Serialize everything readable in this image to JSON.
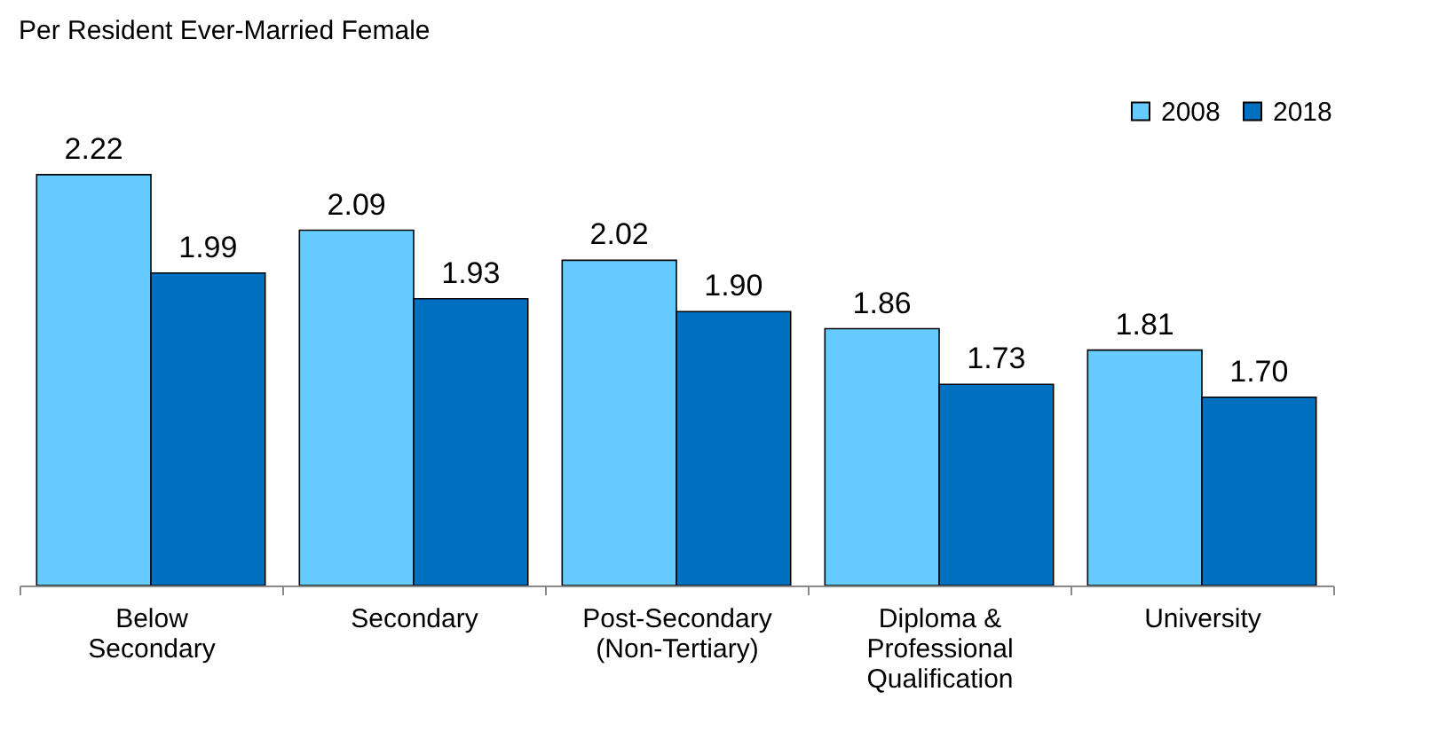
{
  "chart_data": {
    "type": "bar",
    "title": "Per Resident Ever-Married Female",
    "categories": [
      "Below\nSecondary",
      "Secondary",
      "Post-Secondary\n(Non-Tertiary)",
      "Diploma &\nProfessional\nQualification",
      "University"
    ],
    "series": [
      {
        "name": "2008",
        "color": "#66ccff",
        "values": [
          2.22,
          2.09,
          2.02,
          1.86,
          1.81
        ],
        "value_labels": [
          "2.22",
          "2.09",
          "2.02",
          "1.86",
          "1.81"
        ]
      },
      {
        "name": "2018",
        "color": "#0070c0",
        "values": [
          1.99,
          1.93,
          1.9,
          1.73,
          1.7
        ],
        "value_labels": [
          "1.99",
          "1.93",
          "1.90",
          "1.73",
          "1.70"
        ]
      }
    ],
    "ylim": [
      1.26,
      2.4
    ],
    "legend": "top right",
    "grid": false
  }
}
